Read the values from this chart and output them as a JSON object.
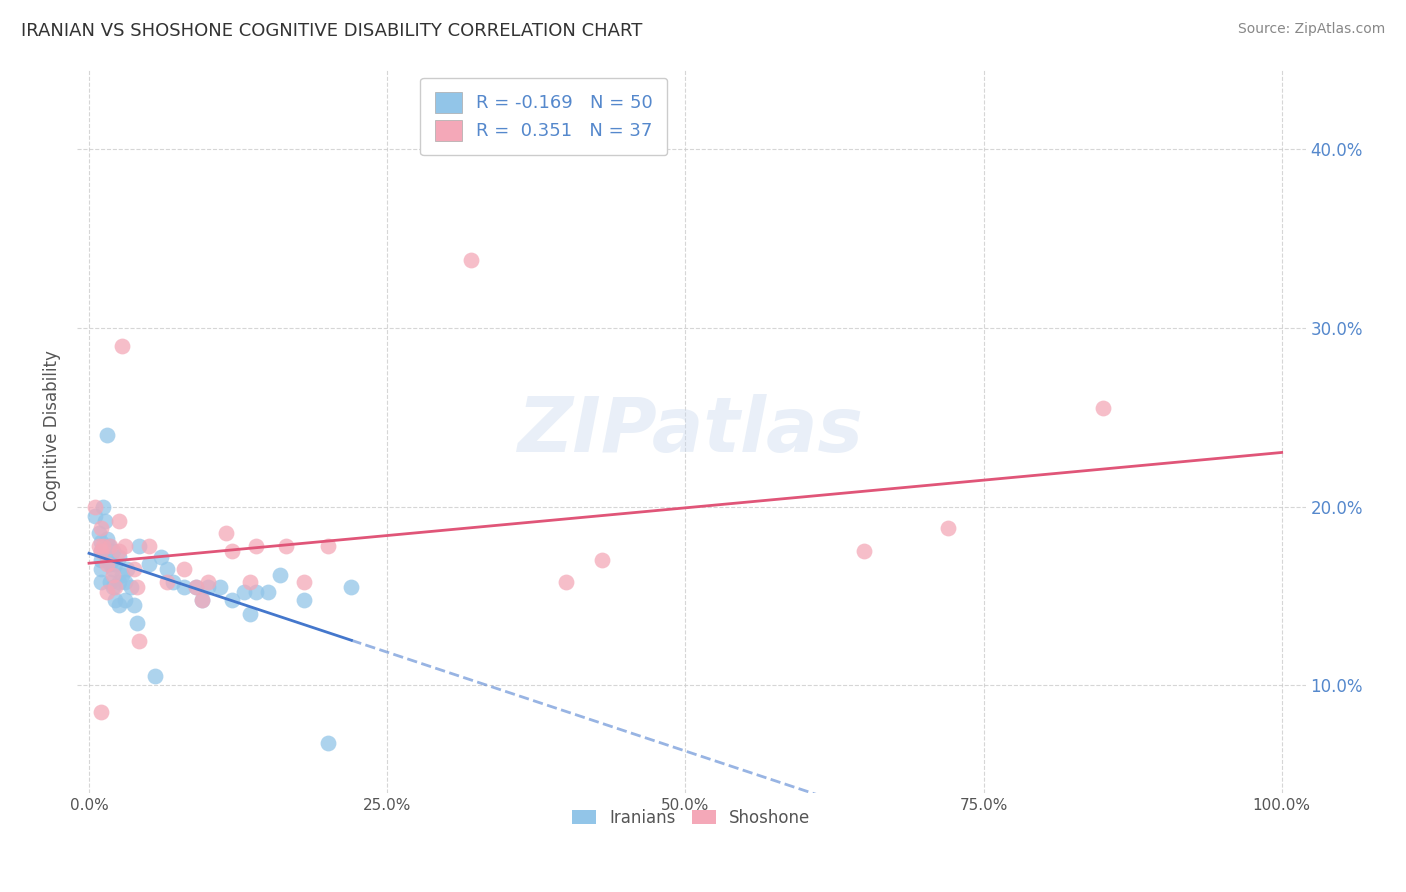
{
  "title": "IRANIAN VS SHOSHONE COGNITIVE DISABILITY CORRELATION CHART",
  "source": "Source: ZipAtlas.com",
  "ylabel": "Cognitive Disability",
  "xlim": [
    -0.01,
    1.02
  ],
  "ylim": [
    0.04,
    0.445
  ],
  "xticks": [
    0.0,
    0.25,
    0.5,
    0.75,
    1.0
  ],
  "xticklabels": [
    "0.0%",
    "25.0%",
    "50.0%",
    "75.0%",
    "100.0%"
  ],
  "yticks": [
    0.1,
    0.2,
    0.3,
    0.4
  ],
  "yticklabels": [
    "10.0%",
    "20.0%",
    "30.0%",
    "40.0%"
  ],
  "iranians_R": -0.169,
  "iranians_N": 50,
  "shoshone_R": 0.351,
  "shoshone_N": 37,
  "iranian_color": "#92C5E8",
  "shoshone_color": "#F4A8B8",
  "iranian_line_color": "#4477CC",
  "shoshone_line_color": "#E05578",
  "tick_color": "#5588CC",
  "watermark": "ZIPatlas",
  "iranians_x": [
    0.005,
    0.008,
    0.01,
    0.01,
    0.01,
    0.01,
    0.01,
    0.012,
    0.013,
    0.015,
    0.015,
    0.015,
    0.017,
    0.018,
    0.018,
    0.02,
    0.02,
    0.02,
    0.022,
    0.022,
    0.025,
    0.025,
    0.025,
    0.028,
    0.03,
    0.03,
    0.032,
    0.035,
    0.038,
    0.04,
    0.042,
    0.05,
    0.055,
    0.06,
    0.065,
    0.07,
    0.08,
    0.09,
    0.095,
    0.1,
    0.11,
    0.12,
    0.13,
    0.135,
    0.14,
    0.15,
    0.16,
    0.18,
    0.2,
    0.22
  ],
  "iranians_y": [
    0.195,
    0.185,
    0.18,
    0.175,
    0.17,
    0.165,
    0.158,
    0.2,
    0.192,
    0.24,
    0.182,
    0.172,
    0.178,
    0.168,
    0.158,
    0.175,
    0.165,
    0.155,
    0.168,
    0.148,
    0.172,
    0.158,
    0.145,
    0.162,
    0.158,
    0.148,
    0.165,
    0.155,
    0.145,
    0.135,
    0.178,
    0.168,
    0.105,
    0.172,
    0.165,
    0.158,
    0.155,
    0.155,
    0.148,
    0.155,
    0.155,
    0.148,
    0.152,
    0.14,
    0.152,
    0.152,
    0.162,
    0.148,
    0.068,
    0.155
  ],
  "shoshone_x": [
    0.005,
    0.008,
    0.01,
    0.01,
    0.01,
    0.012,
    0.015,
    0.015,
    0.018,
    0.02,
    0.022,
    0.025,
    0.025,
    0.028,
    0.03,
    0.038,
    0.04,
    0.042,
    0.05,
    0.065,
    0.08,
    0.09,
    0.095,
    0.1,
    0.115,
    0.12,
    0.135,
    0.14,
    0.165,
    0.18,
    0.2,
    0.32,
    0.4,
    0.43,
    0.65,
    0.72,
    0.85
  ],
  "shoshone_y": [
    0.2,
    0.178,
    0.188,
    0.175,
    0.085,
    0.178,
    0.168,
    0.152,
    0.178,
    0.162,
    0.155,
    0.192,
    0.175,
    0.29,
    0.178,
    0.165,
    0.155,
    0.125,
    0.178,
    0.158,
    0.165,
    0.155,
    0.148,
    0.158,
    0.185,
    0.175,
    0.158,
    0.178,
    0.178,
    0.158,
    0.178,
    0.338,
    0.158,
    0.17,
    0.175,
    0.188,
    0.255
  ]
}
